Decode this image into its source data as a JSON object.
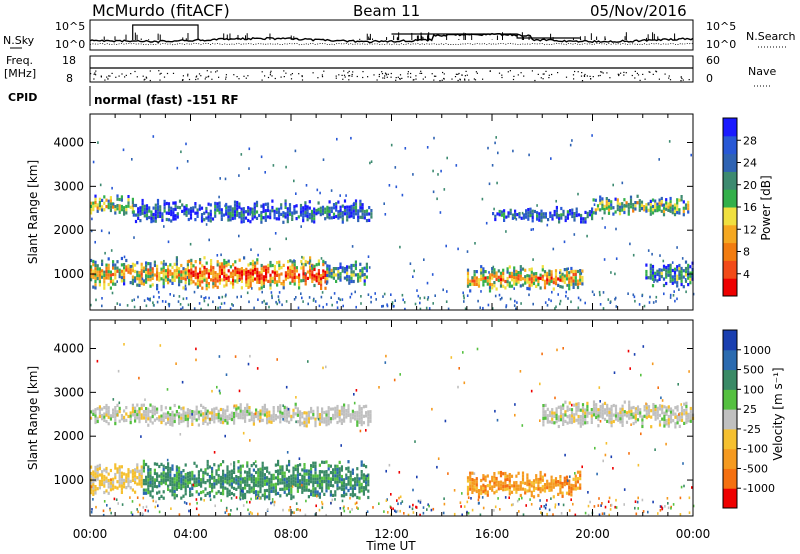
{
  "header": {
    "station": "McMurdo (fitACF)",
    "beam": "Beam 11",
    "date": "05/Nov/2016"
  },
  "panels": {
    "nsky_label": "N.Sky",
    "nsearch_label": "N.Search",
    "nsky_ticks": [
      "10^5",
      "10^0"
    ],
    "nsearch_ticks": [
      "10^5",
      "10^0"
    ],
    "freq_label": "Freq.",
    "freq_unit": "[MHz]",
    "freq_ticks": [
      "18",
      "8"
    ],
    "nave_label": "Nave",
    "nave_ticks": [
      "60",
      "0"
    ],
    "cpid_label": "CPID",
    "cpid_text": "normal (fast) -151 RF"
  },
  "chart_data": [
    {
      "type": "heatmap",
      "name": "power",
      "ylabel": "Slant Range [km]",
      "ylim": [
        180,
        4650
      ],
      "yticks": [
        "1000",
        "2000",
        "3000",
        "4000"
      ],
      "x_ticks": [
        "00:00",
        "04:00",
        "08:00",
        "12:00",
        "16:00",
        "20:00",
        "00:00"
      ],
      "xlabel": "",
      "colorbar": {
        "label": "Power [dB]",
        "ticks": [
          "28",
          "24",
          "20",
          "16",
          "12",
          "8",
          "4"
        ],
        "colors": [
          "#1a1aff",
          "#2858d6",
          "#2f63b3",
          "#3d8a70",
          "#33b04a",
          "#f0e040",
          "#f5a821",
          "#f27c10",
          "#f24a18",
          "#ee0000"
        ]
      },
      "echo_regions": [
        {
          "t0": 0.0,
          "t1": 3.9,
          "r0": 750,
          "r1": 1350,
          "level": 0.55
        },
        {
          "t0": 3.9,
          "t1": 9.4,
          "r0": 700,
          "r1": 1350,
          "level": 0.75
        },
        {
          "t0": 9.4,
          "t1": 11.0,
          "r0": 800,
          "r1": 1300,
          "level": 0.35
        },
        {
          "t0": 15.0,
          "t1": 19.6,
          "r0": 700,
          "r1": 1150,
          "level": 0.6
        },
        {
          "t0": 22.1,
          "t1": 24.0,
          "r0": 800,
          "r1": 1250,
          "level": 0.3
        },
        {
          "t0": 0.0,
          "t1": 1.7,
          "r0": 2400,
          "r1": 2750,
          "level": 0.5
        },
        {
          "t0": 1.7,
          "t1": 11.2,
          "r0": 2250,
          "r1": 2650,
          "level": 0.2
        },
        {
          "t0": 16.0,
          "t1": 20.0,
          "r0": 2250,
          "r1": 2500,
          "level": 0.2
        },
        {
          "t0": 20.0,
          "t1": 23.8,
          "r0": 2400,
          "r1": 2750,
          "level": 0.45
        }
      ]
    },
    {
      "type": "heatmap",
      "name": "velocity",
      "ylabel": "Slant Range [km]",
      "ylim": [
        180,
        4650
      ],
      "yticks": [
        "1000",
        "2000",
        "3000",
        "4000"
      ],
      "x_ticks": [
        "00:00",
        "04:00",
        "08:00",
        "12:00",
        "16:00",
        "20:00",
        "00:00"
      ],
      "xlabel": "Time UT",
      "colorbar": {
        "label": "Velocity [m s⁻¹]",
        "ticks": [
          "1000",
          "500",
          "100",
          "25",
          "-25",
          "-100",
          "-500",
          "-1000"
        ],
        "colors": [
          "#1a3fb0",
          "#2b6bb0",
          "#3a8a66",
          "#55c040",
          "#c0c0c0",
          "#f5c030",
          "#f59a20",
          "#f57010",
          "#ee0000"
        ]
      },
      "echo_regions": [
        {
          "t0": 0.0,
          "t1": 2.1,
          "r0": 750,
          "r1": 1350,
          "vel": "slow-neg"
        },
        {
          "t0": 2.1,
          "t1": 11.1,
          "r0": 650,
          "r1": 1400,
          "vel": "pos"
        },
        {
          "t0": 15.0,
          "t1": 19.5,
          "r0": 700,
          "r1": 1150,
          "vel": "neg"
        },
        {
          "t0": 0.0,
          "t1": 11.2,
          "r0": 2300,
          "r1": 2700,
          "vel": "zero"
        },
        {
          "t0": 18.0,
          "t1": 24.0,
          "r0": 2300,
          "r1": 2750,
          "vel": "zero"
        }
      ]
    }
  ]
}
